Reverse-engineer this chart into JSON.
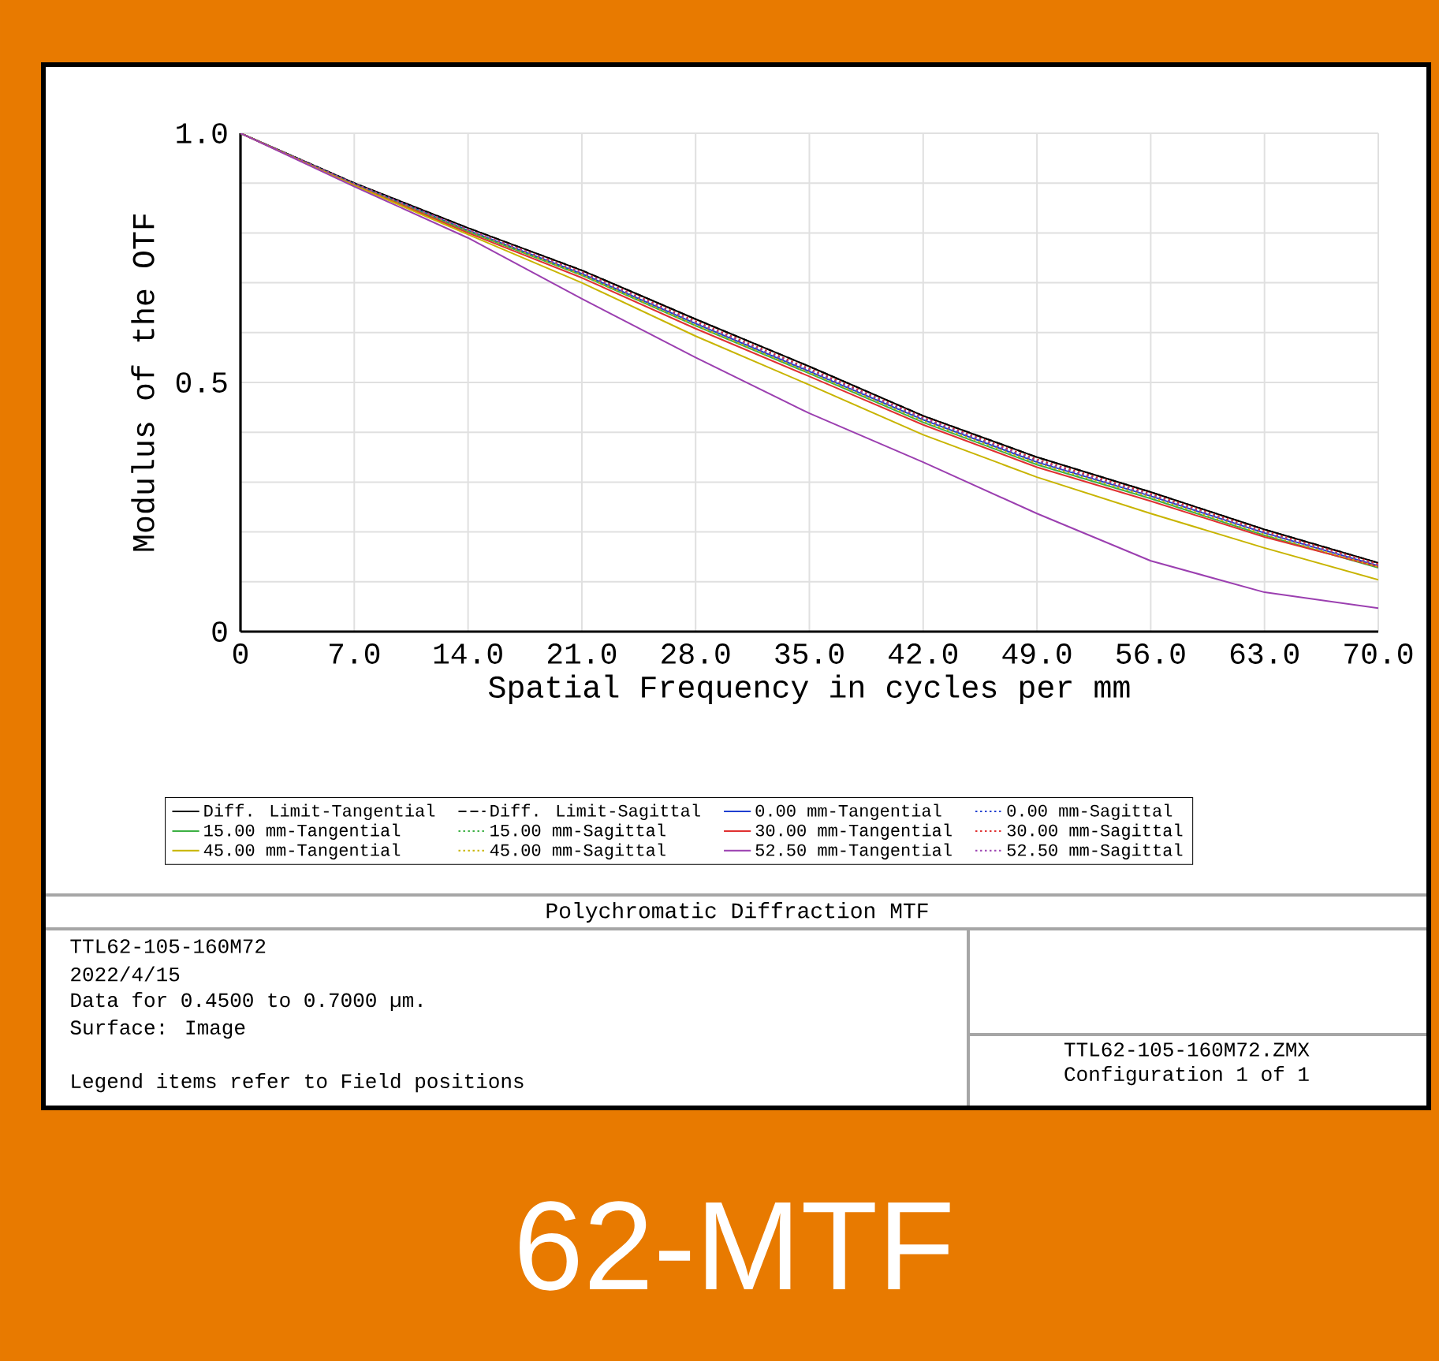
{
  "chart_data": {
    "type": "line",
    "title": "Polychromatic Diffraction MTF",
    "xlabel": "Spatial Frequency in cycles per mm",
    "ylabel": "Modulus of the OTF",
    "x": [
      0,
      7,
      14,
      21,
      28,
      35,
      42,
      49,
      56,
      63,
      70
    ],
    "xlim": [
      0,
      70
    ],
    "ylim": [
      0,
      1
    ],
    "xticks": [
      0,
      {
        "value": 7,
        "label": "7.0"
      },
      {
        "value": 14,
        "label": "14.0"
      },
      {
        "value": 21,
        "label": "21.0"
      },
      {
        "value": 28,
        "label": "28.0"
      },
      {
        "value": 35,
        "label": "35.0"
      },
      {
        "value": 42,
        "label": "42.0"
      },
      {
        "value": 49,
        "label": "49.0"
      },
      {
        "value": 56,
        "label": "56.0"
      },
      {
        "value": 63,
        "label": "63.0"
      },
      {
        "value": 70,
        "label": "70.0"
      }
    ],
    "yticks": [
      0,
      {
        "value": 0.1,
        "label": null
      },
      {
        "value": 0.2,
        "label": null
      },
      {
        "value": 0.3,
        "label": null
      },
      {
        "value": 0.4,
        "label": null
      },
      0.5,
      {
        "value": 0.6,
        "label": null
      },
      {
        "value": 0.7,
        "label": null
      },
      {
        "value": 0.8,
        "label": null
      },
      {
        "value": 0.9,
        "label": null
      },
      {
        "value": 1,
        "label": "1.0"
      }
    ],
    "grid": true,
    "legend": "bottom",
    "series": [
      {
        "name": "Diff. Limit-Tangential",
        "color": "#000000",
        "line_style": "solid",
        "values": [
          1.0,
          0.9,
          0.81,
          0.725,
          0.627,
          0.532,
          0.433,
          0.35,
          0.28,
          0.205,
          0.138
        ]
      },
      {
        "name": "Diff. Limit-Sagittal",
        "color": "#000000",
        "line_style": "dashed",
        "values": [
          1.0,
          0.9,
          0.81,
          0.725,
          0.627,
          0.532,
          0.433,
          0.35,
          0.28,
          0.205,
          0.138
        ]
      },
      {
        "name": "0.00 mm-Tangential",
        "color": "#1f3fd0",
        "line_style": "solid",
        "values": [
          1.0,
          0.898,
          0.805,
          0.718,
          0.618,
          0.522,
          0.425,
          0.34,
          0.272,
          0.198,
          0.132
        ]
      },
      {
        "name": "0.00 mm-Sagittal",
        "color": "#1f3fd0",
        "line_style": "dotted",
        "values": [
          1.0,
          0.898,
          0.806,
          0.72,
          0.62,
          0.525,
          0.427,
          0.342,
          0.273,
          0.199,
          0.133
        ]
      },
      {
        "name": "15.00 mm-Tangential",
        "color": "#3cb043",
        "line_style": "solid",
        "values": [
          1.0,
          0.897,
          0.803,
          0.715,
          0.614,
          0.518,
          0.42,
          0.335,
          0.267,
          0.193,
          0.128
        ]
      },
      {
        "name": "15.00 mm-Sagittal",
        "color": "#3cb043",
        "line_style": "dotted",
        "values": [
          1.0,
          0.899,
          0.806,
          0.72,
          0.62,
          0.526,
          0.428,
          0.344,
          0.275,
          0.2,
          0.134
        ]
      },
      {
        "name": "30.00 mm-Tangential",
        "color": "#e03030",
        "line_style": "solid",
        "values": [
          1.0,
          0.896,
          0.8,
          0.71,
          0.608,
          0.512,
          0.415,
          0.33,
          0.262,
          0.19,
          0.13
        ]
      },
      {
        "name": "30.00 mm-Sagittal",
        "color": "#e03030",
        "line_style": "dotted",
        "values": [
          1.0,
          0.899,
          0.807,
          0.722,
          0.623,
          0.528,
          0.43,
          0.346,
          0.277,
          0.202,
          0.136
        ]
      },
      {
        "name": "45.00 mm-Tangential",
        "color": "#c8b400",
        "line_style": "solid",
        "values": [
          1.0,
          0.895,
          0.797,
          0.7,
          0.593,
          0.495,
          0.395,
          0.31,
          0.237,
          0.168,
          0.104
        ]
      },
      {
        "name": "45.00 mm-Sagittal",
        "color": "#c8b400",
        "line_style": "dotted",
        "values": [
          1.0,
          0.898,
          0.805,
          0.716,
          0.615,
          0.52,
          0.423,
          0.338,
          0.27,
          0.195,
          0.13
        ]
      },
      {
        "name": "52.50 mm-Tangential",
        "color": "#9b3fb0",
        "line_style": "solid",
        "values": [
          1.0,
          0.893,
          0.79,
          0.668,
          0.55,
          0.438,
          0.34,
          0.237,
          0.142,
          0.079,
          0.047
        ]
      },
      {
        "name": "52.50 mm-Sagittal",
        "color": "#9b3fb0",
        "line_style": "dotted",
        "values": [
          1.0,
          0.899,
          0.806,
          0.72,
          0.62,
          0.525,
          0.428,
          0.343,
          0.274,
          0.199,
          0.133
        ]
      }
    ],
    "annotations": [
      "TTL62-105-160M72",
      "2022/4/15",
      "Data for 0.4500 to 0.7000 µm.",
      "Surface: Image",
      "Legend items refer to Field positions",
      "TTL62-105-160M72.ZMX",
      "Configuration 1 of 1",
      "62-MTF"
    ]
  }
}
